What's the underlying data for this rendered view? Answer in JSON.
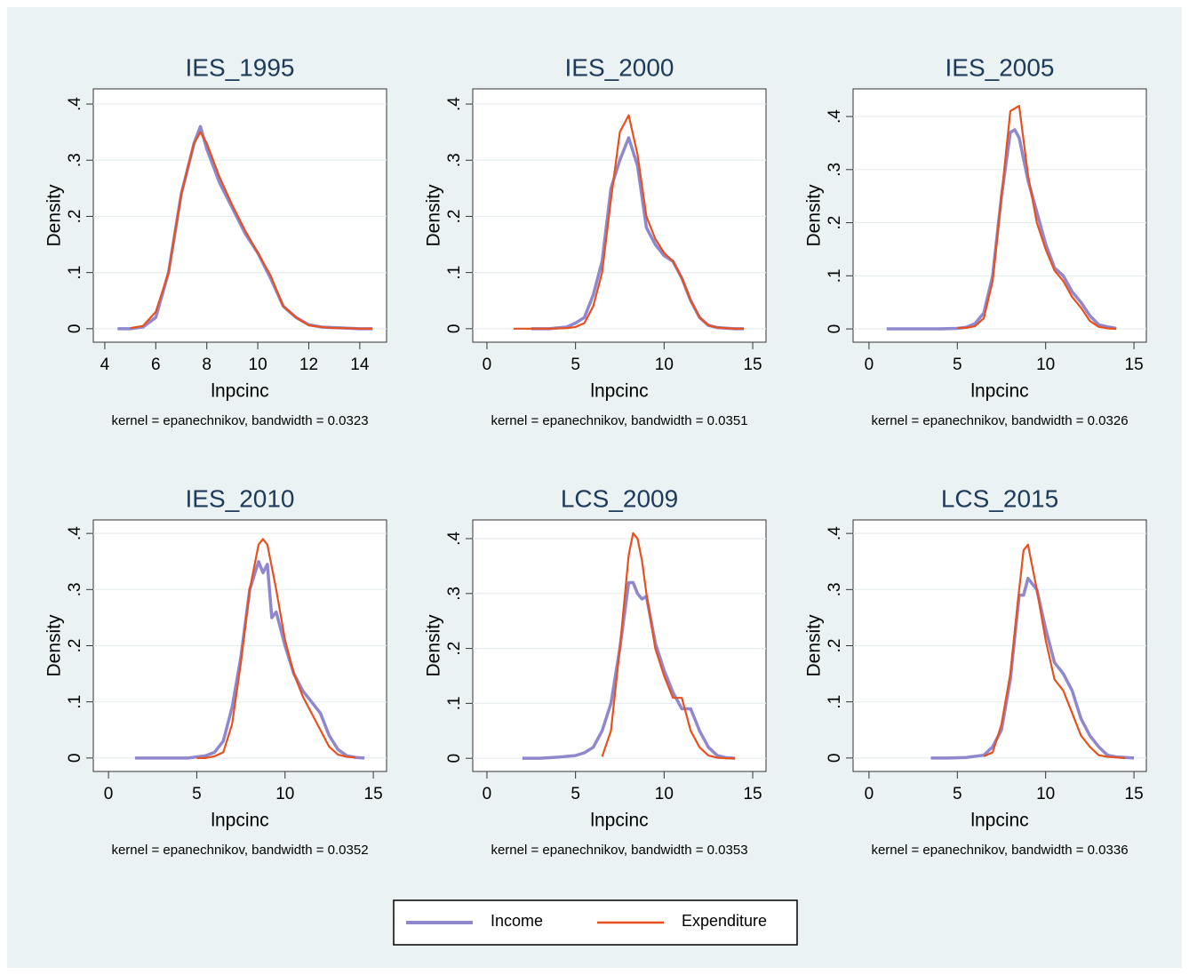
{
  "chart_data": [
    {
      "type": "line",
      "title": "IES_1995",
      "x_label": "lnpcinc",
      "y_label": "Density",
      "note": "kernel = epanechnikov, bandwidth = 0.0323",
      "xlim": [
        3.55,
        15.05
      ],
      "xticks": [
        4,
        6,
        8,
        10,
        12,
        14
      ],
      "ylim": [
        -0.024,
        0.427
      ],
      "yticks": [
        0,
        {
          "value": 0.1,
          "label": ".1"
        },
        {
          "value": 0.2,
          "label": ".2"
        },
        {
          "value": 0.3,
          "label": ".3"
        },
        {
          "value": 0.4,
          "label": ".4"
        }
      ],
      "grid": true,
      "x": [
        4.5,
        5,
        5.5,
        6,
        6.5,
        7,
        7.5,
        7.75,
        8,
        8.5,
        9,
        9.5,
        10,
        10.5,
        11,
        11.5,
        12,
        12.5,
        13,
        13.5,
        14,
        14.5
      ],
      "series": [
        {
          "name": "Income",
          "color": "#8f88cf",
          "values": [
            0,
            0,
            0.003,
            0.02,
            0.1,
            0.24,
            0.33,
            0.36,
            0.32,
            0.26,
            0.215,
            0.17,
            0.135,
            0.09,
            0.04,
            0.02,
            0.007,
            0.003,
            0.002,
            0.001,
            0,
            0
          ]
        },
        {
          "name": "Expenditure",
          "color": "#e8501e",
          "values": [
            null,
            0.001,
            0.005,
            0.03,
            0.1,
            0.24,
            0.33,
            0.35,
            0.33,
            0.27,
            0.22,
            0.175,
            0.135,
            0.095,
            0.04,
            0.02,
            0.006,
            0.003,
            0.001,
            0.001,
            0,
            0
          ]
        }
      ]
    },
    {
      "type": "line",
      "title": "IES_2000",
      "x_label": "lnpcinc",
      "y_label": "Density",
      "note": "kernel = epanechnikov, bandwidth = 0.0351",
      "xlim": [
        -0.8,
        15.75
      ],
      "xticks": [
        0,
        5,
        10,
        15
      ],
      "ylim": [
        -0.024,
        0.427
      ],
      "yticks": [
        0,
        {
          "value": 0.1,
          "label": ".1"
        },
        {
          "value": 0.2,
          "label": ".2"
        },
        {
          "value": 0.3,
          "label": ".3"
        },
        {
          "value": 0.4,
          "label": ".4"
        }
      ],
      "grid": true,
      "x": [
        1.5,
        2.5,
        3.5,
        4.5,
        5,
        5.5,
        6,
        6.5,
        7,
        7.5,
        8,
        8.5,
        9,
        9.5,
        10,
        10.5,
        11,
        11.5,
        12,
        12.5,
        13,
        13.5,
        14,
        14.5
      ],
      "series": [
        {
          "name": "Income",
          "color": "#8f88cf",
          "values": [
            null,
            0,
            0,
            0.003,
            0.01,
            0.02,
            0.06,
            0.12,
            0.25,
            0.3,
            0.34,
            0.29,
            0.18,
            0.15,
            0.13,
            0.12,
            0.09,
            0.05,
            0.02,
            0.006,
            0.002,
            0.001,
            0,
            0
          ]
        },
        {
          "name": "Expenditure",
          "color": "#e8501e",
          "values": [
            0,
            0,
            0,
            0.001,
            0.003,
            0.01,
            0.04,
            0.1,
            0.23,
            0.35,
            0.38,
            0.31,
            0.2,
            0.16,
            0.135,
            0.12,
            0.09,
            0.05,
            0.02,
            0.006,
            0.002,
            0.001,
            0,
            0
          ]
        }
      ]
    },
    {
      "type": "line",
      "title": "IES_2005",
      "x_label": "lnpcinc",
      "y_label": "Density",
      "note": "kernel = epanechnikov, bandwidth = 0.0326",
      "xlim": [
        -0.9,
        15.7
      ],
      "xticks": [
        0,
        5,
        10,
        15
      ],
      "ylim": [
        -0.025,
        0.452
      ],
      "yticks": [
        0,
        {
          "value": 0.1,
          "label": ".1"
        },
        {
          "value": 0.2,
          "label": ".2"
        },
        {
          "value": 0.3,
          "label": ".3"
        },
        {
          "value": 0.4,
          "label": ".4"
        }
      ],
      "grid": true,
      "x": [
        1,
        2,
        3,
        4,
        5,
        5.5,
        6,
        6.5,
        7,
        7.5,
        8,
        8.25,
        8.5,
        9,
        9.5,
        10,
        10.5,
        11,
        11.5,
        12,
        12.5,
        13,
        13.5,
        14
      ],
      "series": [
        {
          "name": "Income",
          "color": "#8f88cf",
          "values": [
            0,
            0,
            0,
            0,
            0.001,
            0.003,
            0.01,
            0.03,
            0.1,
            0.25,
            0.37,
            0.375,
            0.36,
            0.28,
            0.22,
            0.16,
            0.115,
            0.1,
            0.07,
            0.05,
            0.025,
            0.008,
            0.004,
            0.001
          ]
        },
        {
          "name": "Expenditure",
          "color": "#e8501e",
          "values": [
            null,
            null,
            null,
            null,
            0.002,
            0.002,
            0.005,
            0.02,
            0.09,
            0.25,
            0.41,
            0.415,
            0.42,
            0.29,
            0.2,
            0.15,
            0.11,
            0.09,
            0.06,
            0.04,
            0.015,
            0.004,
            0.001,
            0
          ]
        }
      ]
    },
    {
      "type": "line",
      "title": "IES_2010",
      "x_label": "lnpcinc",
      "y_label": "Density",
      "note": "kernel = epanechnikov, bandwidth = 0.0352",
      "xlim": [
        -0.86,
        15.75
      ],
      "xticks": [
        0,
        5,
        10,
        15
      ],
      "ylim": [
        -0.024,
        0.424
      ],
      "yticks": [
        0,
        {
          "value": 0.1,
          "label": ".1"
        },
        {
          "value": 0.2,
          "label": ".2"
        },
        {
          "value": 0.3,
          "label": ".3"
        },
        {
          "value": 0.4,
          "label": ".4"
        }
      ],
      "grid": true,
      "x": [
        1.5,
        2.5,
        3.5,
        4.5,
        5,
        5.5,
        6,
        6.5,
        7,
        7.5,
        8,
        8.5,
        8.75,
        9,
        9.25,
        9.5,
        10,
        10.5,
        11,
        11.5,
        12,
        12.5,
        13,
        13.5,
        14,
        14.5
      ],
      "series": [
        {
          "name": "Income",
          "color": "#8f88cf",
          "values": [
            0,
            0,
            0,
            0,
            0.002,
            0.004,
            0.01,
            0.03,
            0.09,
            0.18,
            0.3,
            0.35,
            0.33,
            0.345,
            0.25,
            0.26,
            0.2,
            0.15,
            0.12,
            0.1,
            0.08,
            0.04,
            0.015,
            0.004,
            0.001,
            0
          ]
        },
        {
          "name": "Expenditure",
          "color": "#e8501e",
          "values": [
            null,
            null,
            null,
            null,
            0,
            0,
            0.003,
            0.01,
            0.06,
            0.17,
            0.3,
            0.38,
            0.39,
            0.38,
            0.34,
            0.3,
            0.21,
            0.15,
            0.11,
            0.08,
            0.05,
            0.02,
            0.006,
            0.002,
            0.001,
            null
          ]
        }
      ]
    },
    {
      "type": "line",
      "title": "LCS_2009",
      "x_label": "lnpcinc",
      "y_label": "Density",
      "note": "kernel = epanechnikov, bandwidth = 0.0353",
      "xlim": [
        -0.8,
        15.75
      ],
      "xticks": [
        0,
        5,
        10,
        15
      ],
      "ylim": [
        -0.024,
        0.434
      ],
      "yticks": [
        0,
        {
          "value": 0.1,
          "label": ".1"
        },
        {
          "value": 0.2,
          "label": ".2"
        },
        {
          "value": 0.3,
          "label": ".3"
        },
        {
          "value": 0.4,
          "label": ".4"
        }
      ],
      "grid": true,
      "x": [
        2,
        3,
        4,
        5,
        5.5,
        6,
        6.5,
        7,
        7.5,
        8,
        8.25,
        8.5,
        8.75,
        9,
        9.5,
        10,
        10.5,
        11,
        11.5,
        12,
        12.5,
        13,
        13.5,
        14
      ],
      "series": [
        {
          "name": "Income",
          "color": "#8f88cf",
          "values": [
            0,
            0,
            0.002,
            0.005,
            0.01,
            0.02,
            0.05,
            0.1,
            0.2,
            0.32,
            0.32,
            0.3,
            0.29,
            0.295,
            0.21,
            0.16,
            0.12,
            0.09,
            0.09,
            0.05,
            0.02,
            0.005,
            0.001,
            0
          ]
        },
        {
          "name": "Expenditure",
          "color": "#e8501e",
          "values": [
            null,
            null,
            null,
            null,
            null,
            null,
            0.003,
            0.05,
            0.2,
            0.37,
            0.41,
            0.4,
            0.36,
            0.3,
            0.2,
            0.15,
            0.11,
            0.11,
            0.05,
            0.02,
            0.005,
            0.001,
            0,
            0
          ]
        }
      ]
    },
    {
      "type": "line",
      "title": "LCS_2015",
      "x_label": "lnpcinc",
      "y_label": "Density",
      "note": "kernel = epanechnikov, bandwidth = 0.0336",
      "xlim": [
        -0.9,
        15.7
      ],
      "xticks": [
        0,
        5,
        10,
        15
      ],
      "ylim": [
        -0.024,
        0.424
      ],
      "yticks": [
        0,
        {
          "value": 0.1,
          "label": ".1"
        },
        {
          "value": 0.2,
          "label": ".2"
        },
        {
          "value": 0.3,
          "label": ".3"
        },
        {
          "value": 0.4,
          "label": ".4"
        }
      ],
      "grid": true,
      "x": [
        3.5,
        4.5,
        5.5,
        6,
        6.5,
        7,
        7.5,
        8,
        8.5,
        8.75,
        9,
        9.5,
        10,
        10.5,
        11,
        11.5,
        12,
        12.5,
        13,
        13.5,
        14,
        14.5,
        15
      ],
      "series": [
        {
          "name": "Income",
          "color": "#8f88cf",
          "values": [
            0,
            0,
            0.001,
            0.003,
            0.005,
            0.02,
            0.05,
            0.14,
            0.29,
            0.29,
            0.32,
            0.3,
            0.23,
            0.17,
            0.15,
            0.12,
            0.07,
            0.04,
            0.02,
            0.005,
            0.002,
            0.001,
            0
          ]
        },
        {
          "name": "Expenditure",
          "color": "#e8501e",
          "values": [
            null,
            null,
            null,
            null,
            0.003,
            0.01,
            0.06,
            0.15,
            0.3,
            0.37,
            0.38,
            0.3,
            0.21,
            0.14,
            0.12,
            0.08,
            0.04,
            0.02,
            0.005,
            0.002,
            0.001,
            0,
            null
          ]
        }
      ]
    }
  ]
}
